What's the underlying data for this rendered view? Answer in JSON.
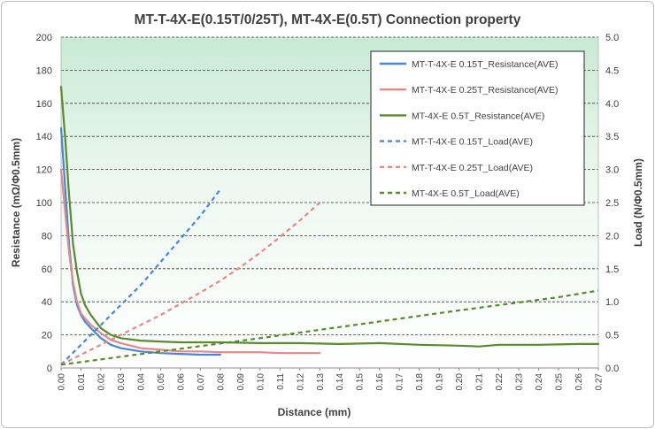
{
  "chart_data": {
    "type": "line",
    "title": "MT-T-4X-E(0.15T/0/25T), MT-4X-E(0.5T) Connection property",
    "xlabel": "Distance (mm)",
    "ylabel": "Resistance (mΩ/Φ0.5mm)",
    "y2label": "Load (N/Φ0.5mm)",
    "xlim": [
      0,
      0.27
    ],
    "ylim": [
      0,
      200
    ],
    "y2lim": [
      0,
      5
    ],
    "x_ticks": [
      "0.00",
      "0.01",
      "0.02",
      "0.03",
      "0.04",
      "0.05",
      "0.06",
      "0.07",
      "0.08",
      "0.09",
      "0.10",
      "0.11",
      "0.12",
      "0.13",
      "0.14",
      "0.15",
      "0.16",
      "0.17",
      "0.18",
      "0.19",
      "0.20",
      "0.21",
      "0.22",
      "0.23",
      "0.24",
      "0.25",
      "0.26",
      "0.27"
    ],
    "y_ticks": [
      "0",
      "20",
      "40",
      "60",
      "80",
      "100",
      "120",
      "140",
      "160",
      "180",
      "200"
    ],
    "y2_ticks": [
      "0.0",
      "0.5",
      "1.0",
      "1.5",
      "2.0",
      "2.5",
      "3.0",
      "3.5",
      "4.0",
      "4.5",
      "5.0"
    ],
    "grid": "horizontal dashed",
    "legend": "top-right",
    "series": [
      {
        "name": "MT-T-4X-E 0.15T_Resistance(AVE)",
        "axis": "left",
        "style": "solid",
        "color": "#4a86d8",
        "x": [
          0,
          0.002,
          0.004,
          0.006,
          0.008,
          0.01,
          0.012,
          0.015,
          0.02,
          0.025,
          0.03,
          0.04,
          0.05,
          0.06,
          0.07,
          0.08
        ],
        "y": [
          145,
          110,
          75,
          50,
          38,
          32,
          28,
          24,
          18,
          14,
          12,
          10,
          9,
          8.5,
          8,
          8
        ]
      },
      {
        "name": "MT-T-4X-E 0.25T_Resistance(AVE)",
        "axis": "left",
        "style": "solid",
        "color": "#e08a8a",
        "x": [
          0,
          0.002,
          0.004,
          0.006,
          0.008,
          0.01,
          0.012,
          0.015,
          0.02,
          0.025,
          0.03,
          0.04,
          0.05,
          0.06,
          0.07,
          0.08,
          0.09,
          0.1,
          0.11,
          0.12,
          0.13
        ],
        "y": [
          120,
          95,
          70,
          52,
          40,
          33,
          30,
          26,
          21,
          17,
          15,
          12,
          11,
          10,
          10,
          9.5,
          9.5,
          9.5,
          9,
          9,
          9
        ]
      },
      {
        "name": "MT-4X-E 0.5T_Resistance(AVE)",
        "axis": "left",
        "style": "solid",
        "color": "#5a8a2e",
        "x": [
          0,
          0.002,
          0.004,
          0.006,
          0.008,
          0.01,
          0.012,
          0.015,
          0.02,
          0.025,
          0.03,
          0.04,
          0.05,
          0.06,
          0.08,
          0.1,
          0.12,
          0.14,
          0.16,
          0.18,
          0.2,
          0.21,
          0.22,
          0.24,
          0.26,
          0.27
        ],
        "y": [
          170,
          140,
          105,
          75,
          58,
          45,
          38,
          32,
          24,
          20,
          18,
          16.5,
          16,
          15.5,
          15.5,
          15,
          15,
          14.5,
          15,
          14,
          13.5,
          13,
          14,
          14,
          14.5,
          14.5
        ]
      },
      {
        "name": "MT-T-4X-E 0.15T_Load(AVE)",
        "axis": "right",
        "style": "dashed",
        "color": "#4a86d8",
        "x": [
          0,
          0.01,
          0.02,
          0.03,
          0.04,
          0.05,
          0.06,
          0.07,
          0.08
        ],
        "y": [
          0.05,
          0.35,
          0.65,
          0.95,
          1.25,
          1.6,
          1.95,
          2.3,
          2.7
        ]
      },
      {
        "name": "MT-T-4X-E 0.25T_Load(AVE)",
        "axis": "right",
        "style": "dashed",
        "color": "#e08a8a",
        "x": [
          0,
          0.01,
          0.02,
          0.03,
          0.04,
          0.05,
          0.06,
          0.07,
          0.08,
          0.09,
          0.1,
          0.11,
          0.12,
          0.13
        ],
        "y": [
          0.05,
          0.2,
          0.35,
          0.5,
          0.65,
          0.8,
          0.97,
          1.14,
          1.32,
          1.52,
          1.74,
          1.98,
          2.23,
          2.5
        ]
      },
      {
        "name": "MT-4X-E 0.5T_Load(AVE)",
        "axis": "right",
        "style": "dashed",
        "color": "#5a8a2e",
        "x": [
          0,
          0.05,
          0.1,
          0.15,
          0.2,
          0.25,
          0.27
        ],
        "y": [
          0.05,
          0.25,
          0.45,
          0.66,
          0.87,
          1.07,
          1.17
        ]
      }
    ]
  }
}
